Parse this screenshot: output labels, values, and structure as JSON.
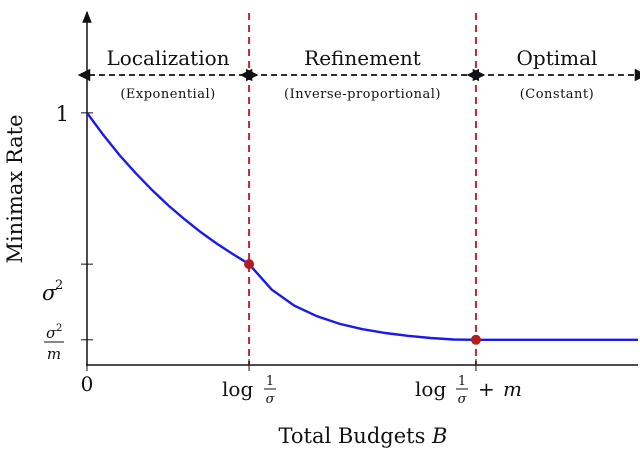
{
  "chart_data": {
    "type": "line",
    "ylabel": "Minimax Rate",
    "xlabel": "Total Budgets B",
    "xlabel_text": "Total Budgets ",
    "xlabel_var": "B",
    "x_ticks": [
      {
        "id": "zero",
        "x": 0,
        "label": "0"
      },
      {
        "id": "log",
        "x": 1,
        "label": "log 1/σ"
      },
      {
        "id": "logm",
        "x": 2.4,
        "label": "log 1/σ + m"
      }
    ],
    "y_ticks": [
      {
        "id": "one",
        "y": 1.0,
        "label": "1"
      },
      {
        "id": "sigma2",
        "y": 0.4,
        "label": "σ²"
      },
      {
        "id": "sigma2m",
        "y": 0.1,
        "label": "σ²/m"
      }
    ],
    "xlim": [
      0,
      3.4
    ],
    "ylim": [
      0,
      1.4
    ],
    "regions": [
      {
        "name": "Localization",
        "sub": "(Exponential)",
        "x_start": 0,
        "x_end": 1
      },
      {
        "name": "Refinement",
        "sub": "(Inverse-proportional)",
        "x_start": 1,
        "x_end": 2.4
      },
      {
        "name": "Optimal",
        "sub": "(Constant)",
        "x_start": 2.4,
        "x_end": 3.4
      }
    ],
    "thresholds": [
      1,
      2.4
    ],
    "series": [
      {
        "name": "",
        "color": "#1a1aee",
        "x": [
          0,
          0.1,
          0.2,
          0.3,
          0.4,
          0.5,
          0.6,
          0.7,
          0.8,
          0.9,
          1.0,
          1.14,
          1.28,
          1.42,
          1.56,
          1.7,
          1.84,
          1.98,
          2.12,
          2.26,
          2.4,
          2.8,
          3.4
        ],
        "y": [
          1.0,
          0.913,
          0.833,
          0.761,
          0.695,
          0.634,
          0.579,
          0.528,
          0.482,
          0.44,
          0.4,
          0.299,
          0.235,
          0.193,
          0.163,
          0.142,
          0.127,
          0.116,
          0.107,
          0.101,
          0.1,
          0.1,
          0.1
        ]
      }
    ],
    "markers": [
      {
        "x": 1,
        "y": 0.4
      },
      {
        "x": 2.4,
        "y": 0.1
      }
    ],
    "colors": {
      "curve": "#1a1aee",
      "threshold": "#c0282e",
      "marker": "#b71c1c",
      "axis": "#111111"
    }
  }
}
